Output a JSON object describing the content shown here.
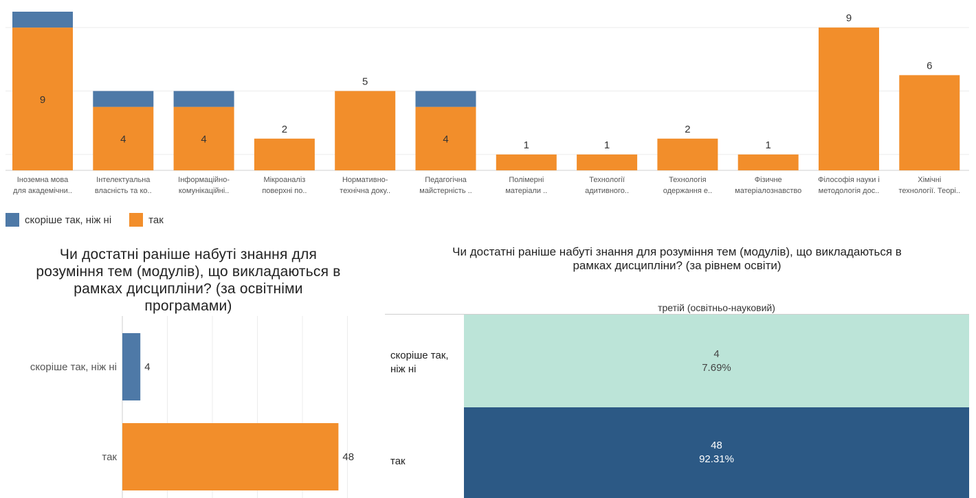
{
  "chart_data": [
    {
      "type": "bar",
      "stacked": true,
      "categories": [
        [
          "Іноземна мова",
          "для академічни.."
        ],
        [
          "Інтелектуальна",
          "власність та ко.."
        ],
        [
          "Інформаційно-",
          "комунікаційні.."
        ],
        [
          "Мікроаналіз",
          "поверхні по.."
        ],
        [
          "Нормативно-",
          "технічна доку.."
        ],
        [
          "Педагогічна",
          "майстерність .."
        ],
        [
          "Полімерні",
          "матеріали .."
        ],
        [
          "Технології",
          "адитивного.."
        ],
        [
          "Технологія",
          "одержання е.."
        ],
        [
          "Фізичне",
          "матеріалознавство"
        ],
        [
          "Філософія науки і",
          "методологія дос.."
        ],
        [
          "Хімічні",
          "технології. Теорі.."
        ]
      ],
      "series": [
        {
          "name": "так",
          "values": [
            9,
            4,
            4,
            2,
            5,
            4,
            1,
            1,
            2,
            1,
            9,
            6
          ],
          "color": "#F28E2B"
        },
        {
          "name": "скоріше так, ніж ні",
          "values": [
            1,
            1,
            1,
            0,
            0,
            1,
            0,
            0,
            0,
            0,
            0,
            0
          ],
          "color": "#4E79A7"
        }
      ],
      "data_labels": [
        "9",
        "4",
        "4",
        "2",
        "5",
        "4",
        "1",
        "1",
        "2",
        "1",
        "9",
        "6"
      ],
      "ylim": [
        0,
        10.8
      ],
      "grid": true,
      "legend": [
        {
          "label": "скоріше так, ніж ні",
          "color": "#4E79A7"
        },
        {
          "label": "так",
          "color": "#F28E2B"
        }
      ],
      "legend_position": "bottom-left"
    },
    {
      "type": "bar",
      "orientation": "horizontal",
      "title": "Чи достатні раніше набуті знання для розуміння тем (модулів), що викладаються в рамках дисципліни? (за освітніми програмами)",
      "title_lines": [
        "Чи достатні раніше набуті знання для",
        "розуміння тем (модулів), що викладаються в",
        "рамках дисципліни? (за освітніми",
        "програмами)"
      ],
      "categories": [
        "скоріше так, ніж ні",
        "так"
      ],
      "values": [
        4,
        48
      ],
      "colors": [
        "#4E79A7",
        "#F28E2B"
      ],
      "xlim": [
        0,
        55
      ],
      "grid": true
    },
    {
      "type": "heatmap",
      "title": "Чи достатні раніше набуті знання для розуміння тем (модулів), що викладаються в рамках дисципліни? (за рівнем освіти)",
      "title_lines": [
        "Чи достатні раніше набуті знання для розуміння тем (модулів), що викладаються в",
        "рамках дисципліни? (за рівнем освіти)"
      ],
      "column_header": "третій (освітньо-науковий)",
      "rows": [
        {
          "label_lines": [
            "скоріше так,",
            "ніж ні"
          ],
          "count": "4",
          "percent": "7.69%",
          "color": "#BCE4D8",
          "text_color": "#444444"
        },
        {
          "label_lines": [
            "так"
          ],
          "count": "48",
          "percent": "92.31%",
          "color": "#2C5985",
          "text_color": "#FFFFFF"
        }
      ]
    }
  ]
}
